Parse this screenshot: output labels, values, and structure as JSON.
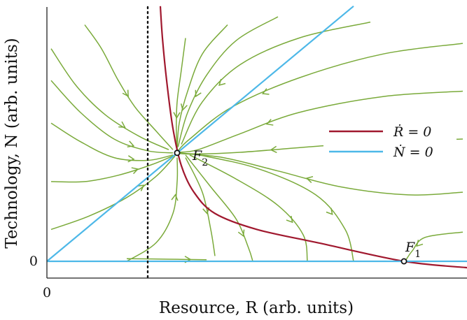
{
  "chart_data": {
    "type": "phase_portrait",
    "title": "",
    "xlabel": "Resource, R (arb. units)",
    "ylabel": "Technology, N (arb. units)",
    "xlim": [
      0,
      10
    ],
    "ylim": [
      -0.3,
      4.8
    ],
    "x_ticks": [
      {
        "value": 0,
        "label": "0"
      }
    ],
    "y_ticks": [
      {
        "value": 0,
        "label": "0"
      }
    ],
    "grid": false,
    "legend": {
      "placement": "right",
      "entries": [
        {
          "name": "Ṙ = 0",
          "color": "#a0182e"
        },
        {
          "name": "Ṅ = 0",
          "color": "#4db8e8"
        }
      ]
    },
    "series": [
      {
        "name": "Ṙ = 0",
        "color": "#a0182e",
        "points": [
          [
            2.7,
            4.8
          ],
          [
            2.75,
            4.2
          ],
          [
            2.85,
            3.4
          ],
          [
            3.0,
            2.5
          ],
          [
            3.2,
            1.8
          ],
          [
            3.5,
            1.3
          ],
          [
            4.0,
            0.9
          ],
          [
            5.0,
            0.6
          ],
          [
            6.5,
            0.34
          ],
          [
            8.5,
            0.0
          ],
          [
            10.0,
            -0.12
          ]
        ]
      },
      {
        "name": "Ṅ = 0",
        "color": "#4db8e8",
        "points": [
          [
            0,
            0
          ],
          [
            7.3,
            4.8
          ]
        ]
      },
      {
        "name": "",
        "color": "#4db8e8",
        "points": [
          [
            0,
            0
          ],
          [
            10,
            0
          ]
        ]
      }
    ],
    "vertical_line": {
      "x": 2.4,
      "style": "dotted",
      "color": "#111111"
    },
    "fixed_points": [
      {
        "label": "F1",
        "x": 8.5,
        "y": 0.0
      },
      {
        "label": "F2",
        "x": 3.1,
        "y": 2.04
      }
    ],
    "streamline_color": "#7aaa3a",
    "streamlines": [
      [
        [
          0.9,
          4.45
        ],
        [
          1.3,
          4.0
        ],
        [
          1.7,
          3.4
        ],
        [
          2.1,
          2.9
        ],
        [
          2.6,
          2.45
        ],
        [
          3.0,
          2.1
        ]
      ],
      [
        [
          0.1,
          4.0
        ],
        [
          0.7,
          3.3
        ],
        [
          1.4,
          2.75
        ],
        [
          2.2,
          2.35
        ],
        [
          2.9,
          2.1
        ]
      ],
      [
        [
          0.1,
          3.4
        ],
        [
          0.8,
          2.8
        ],
        [
          1.6,
          2.3
        ],
        [
          2.4,
          2.08
        ],
        [
          3.0,
          2.04
        ]
      ],
      [
        [
          0.1,
          2.6
        ],
        [
          0.8,
          2.25
        ],
        [
          1.6,
          1.95
        ],
        [
          2.4,
          1.9
        ],
        [
          3.0,
          2.0
        ]
      ],
      [
        [
          0.1,
          1.5
        ],
        [
          0.9,
          1.5
        ],
        [
          1.7,
          1.62
        ],
        [
          2.5,
          1.82
        ],
        [
          3.05,
          2.0
        ]
      ],
      [
        [
          0.1,
          0.6
        ],
        [
          1.0,
          0.85
        ],
        [
          1.9,
          1.2
        ],
        [
          2.6,
          1.6
        ],
        [
          3.05,
          1.98
        ]
      ],
      [
        [
          1.9,
          0.0
        ],
        [
          2.6,
          0.35
        ],
        [
          3.0,
          0.9
        ],
        [
          3.1,
          1.5
        ],
        [
          3.1,
          1.95
        ]
      ],
      [
        [
          3.3,
          4.2
        ],
        [
          3.2,
          3.6
        ],
        [
          3.1,
          3.0
        ],
        [
          3.08,
          2.5
        ],
        [
          3.1,
          2.1
        ]
      ],
      [
        [
          4.3,
          4.45
        ],
        [
          3.7,
          3.9
        ],
        [
          3.35,
          3.2
        ],
        [
          3.15,
          2.6
        ],
        [
          3.1,
          2.12
        ]
      ],
      [
        [
          5.5,
          4.6
        ],
        [
          4.5,
          4.15
        ],
        [
          3.8,
          3.5
        ],
        [
          3.35,
          2.8
        ],
        [
          3.12,
          2.15
        ]
      ],
      [
        [
          7.7,
          4.5
        ],
        [
          6.0,
          4.2
        ],
        [
          4.6,
          3.7
        ],
        [
          3.7,
          3.0
        ],
        [
          3.2,
          2.2
        ]
      ],
      [
        [
          9.9,
          4.1
        ],
        [
          8.0,
          3.9
        ],
        [
          6.0,
          3.45
        ],
        [
          4.4,
          2.9
        ],
        [
          3.4,
          2.3
        ],
        [
          3.12,
          2.08
        ]
      ],
      [
        [
          9.9,
          3.2
        ],
        [
          8.0,
          3.1
        ],
        [
          6.0,
          2.8
        ],
        [
          4.6,
          2.4
        ],
        [
          3.6,
          2.1
        ],
        [
          3.12,
          2.05
        ]
      ],
      [
        [
          9.9,
          2.3
        ],
        [
          8.0,
          2.25
        ],
        [
          6.2,
          2.15
        ],
        [
          4.6,
          2.05
        ],
        [
          3.6,
          2.02
        ],
        [
          3.12,
          2.04
        ]
      ],
      [
        [
          9.9,
          1.3
        ],
        [
          8.6,
          1.25
        ],
        [
          7.0,
          1.4
        ],
        [
          5.5,
          1.7
        ],
        [
          4.2,
          1.95
        ],
        [
          3.15,
          2.03
        ]
      ],
      [
        [
          9.9,
          0.55
        ],
        [
          9.0,
          0.45
        ],
        [
          8.7,
          0.2
        ],
        [
          8.55,
          0.03
        ]
      ],
      [
        [
          3.3,
          2.0
        ],
        [
          3.9,
          1.4
        ],
        [
          4.5,
          0.8
        ],
        [
          4.8,
          0.25
        ],
        [
          4.9,
          0.0
        ]
      ],
      [
        [
          3.4,
          2.0
        ],
        [
          4.5,
          1.55
        ],
        [
          5.5,
          1.05
        ],
        [
          6.1,
          0.5
        ],
        [
          6.2,
          0.0
        ]
      ],
      [
        [
          3.5,
          2.02
        ],
        [
          5.0,
          1.75
        ],
        [
          6.4,
          1.25
        ],
        [
          7.1,
          0.6
        ],
        [
          7.3,
          0.0
        ]
      ],
      [
        [
          3.3,
          1.95
        ],
        [
          3.7,
          1.3
        ],
        [
          3.9,
          0.6
        ],
        [
          4.0,
          0.1
        ]
      ],
      [
        [
          1.9,
          0.05
        ],
        [
          2.9,
          0.04
        ],
        [
          3.8,
          0.03
        ]
      ]
    ]
  }
}
